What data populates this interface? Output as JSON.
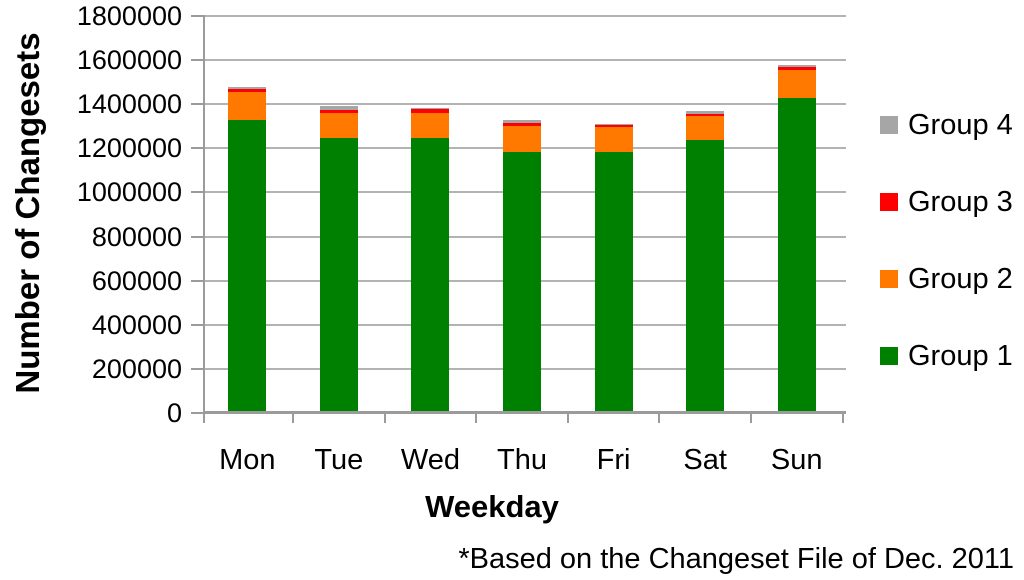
{
  "chart_data": {
    "type": "bar",
    "stacked": true,
    "title": "",
    "xlabel": "Weekday",
    "ylabel": "Number of Changesets",
    "categories": [
      "Mon",
      "Tue",
      "Wed",
      "Thu",
      "Fri",
      "Sat",
      "Sun"
    ],
    "series": [
      {
        "name": "Group 1",
        "color": "#008000",
        "values": [
          1330000,
          1245000,
          1245000,
          1185000,
          1185000,
          1240000,
          1430000
        ]
      },
      {
        "name": "Group 2",
        "color": "#FF7800",
        "values": [
          125000,
          115000,
          115000,
          115000,
          110000,
          105000,
          125000
        ]
      },
      {
        "name": "Group 3",
        "color": "#FF0000",
        "values": [
          15000,
          15000,
          18000,
          15000,
          12000,
          10000,
          15000
        ]
      },
      {
        "name": "Group 4",
        "color": "#A6A6A6",
        "values": [
          8000,
          15000,
          5000,
          12000,
          3000,
          15000,
          10000
        ]
      }
    ],
    "ylim": [
      0,
      1800000
    ],
    "yticks": [
      1800000,
      1600000,
      1400000,
      1200000,
      1000000,
      800000,
      600000,
      400000,
      200000,
      0
    ],
    "grid": "horizontal",
    "legend_position": "right",
    "legend_order": [
      "Group 4",
      "Group 3",
      "Group 2",
      "Group 1"
    ]
  },
  "footnote": "*Based on the Changeset File of Dec. 2011",
  "colors": {
    "axis": "#9B9B9B",
    "gridline": "#B3B3B3",
    "text": "#000000",
    "background": "#FFFFFF"
  }
}
